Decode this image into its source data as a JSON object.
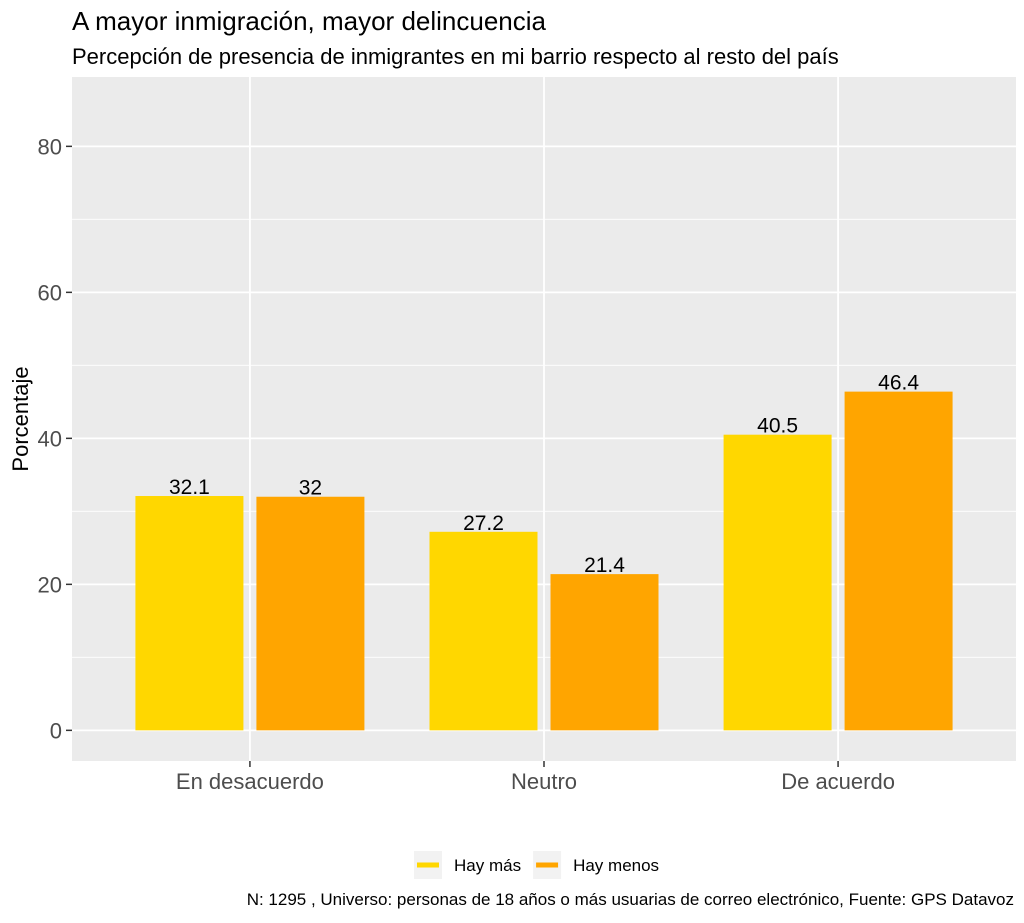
{
  "chart_data": {
    "type": "bar",
    "title": "A mayor inmigración, mayor delincuencia",
    "subtitle": "Percepción de presencia de inmigrantes en mi barrio respecto al resto del país",
    "xlabel": "",
    "ylabel": "Porcentaje",
    "categories": [
      "En desacuerdo",
      "Neutro",
      "De acuerdo"
    ],
    "series": [
      {
        "name": "Hay más",
        "color": "#FFD700",
        "values": [
          32.1,
          27.2,
          40.5
        ],
        "labels": [
          "32.1",
          "27.2",
          "40.5"
        ]
      },
      {
        "name": "Hay menos",
        "color": "#FFA500",
        "values": [
          32.0,
          21.4,
          46.4
        ],
        "labels": [
          "32",
          "21.4",
          "46.4"
        ]
      }
    ],
    "ylim": [
      -4.2,
      89.5
    ],
    "yticks": [
      0,
      20,
      40,
      60,
      80
    ],
    "grid": true,
    "legend_position": "bottom",
    "caption": "N: 1295 , Universo: personas de 18 años o más usuarias de correo electrónico, Fuente: GPS Datavoz",
    "colors": {
      "panel_background": "#EBEBEB",
      "gridline": "#FFFFFF",
      "tick": "#333333"
    }
  }
}
